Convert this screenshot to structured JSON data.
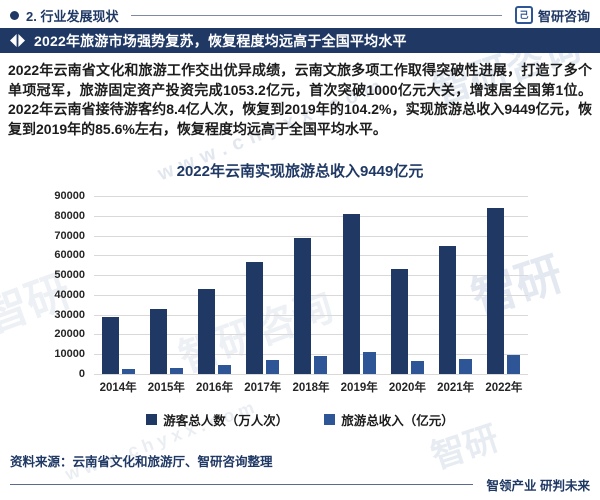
{
  "header": {
    "section_title": "2. 行业发展现状",
    "brand": "智研咨询",
    "logo_glyph": "己"
  },
  "banner": {
    "title": "2022年旅游市场强势复苏，恢复程度均远高于全国平均水平"
  },
  "body": {
    "paragraph": "2022年云南省文化和旅游工作交出优异成绩，云南文旅多项工作取得突破性进展，打造了多个单项冠军，旅游固定资产投资完成1053.2亿元，首次突破1000亿元大关，增速居全国第1位。2022年云南省接待游客约8.4亿人次，恢复到2019年的104.2%，实现旅游总收入9449亿元，恢复到2019年的85.6%左右，恢复程度均远高于全国平均水平。"
  },
  "chart_data": {
    "type": "bar",
    "title": "2022年云南实现旅游总收入9449亿元",
    "categories": [
      "2014年",
      "2015年",
      "2016年",
      "2017年",
      "2018年",
      "2019年",
      "2020年",
      "2021年",
      "2022年"
    ],
    "series": [
      {
        "name": "游客总人数（万人次）",
        "color": "#1f3864",
        "values": [
          28600,
          33000,
          43100,
          56700,
          68800,
          80700,
          52900,
          64500,
          84000
        ]
      },
      {
        "name": "旅游总收入（亿元）",
        "color": "#2e5697",
        "values": [
          2666,
          3282,
          4726,
          6922,
          8991,
          11035,
          6477,
          7700,
          9449
        ]
      }
    ],
    "ylim": [
      0,
      90000
    ],
    "ytick_step": 10000,
    "grid": true,
    "legend_position": "bottom"
  },
  "footer": {
    "source": "资料来源：云南省文化和旅游厅、智研咨询整理",
    "slogan": "智领产业 研判未来"
  },
  "watermarks": {
    "brand": "智研咨询",
    "url": "www.chyxx.com",
    "short": "智研"
  },
  "colors": {
    "navy": "#1f3864",
    "bar_secondary": "#2e5697",
    "gridline": "#d9d9d9",
    "banner_text": "#ffffff"
  }
}
